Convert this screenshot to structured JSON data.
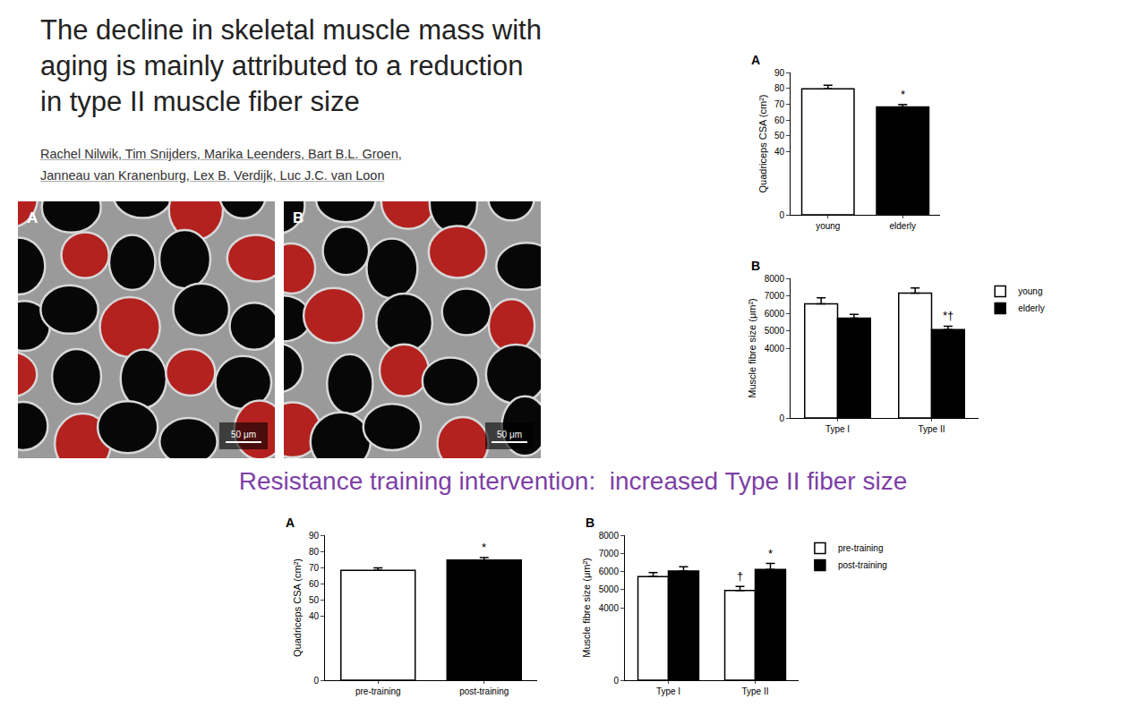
{
  "header": {
    "title": "The decline in skeletal muscle mass with aging is mainly attributed to a reduction in type II muscle fiber size",
    "authors": "Rachel Nilwik, Tim Snijders, Marika Leenders, Bart B.L. Groen, Janneau van Kranenburg, Lex B. Verdijk, Luc J.C. van Loon"
  },
  "images": [
    {
      "label": "A",
      "scale_bar": "50 μm"
    },
    {
      "label": "B",
      "scale_bar": "50 μm"
    }
  ],
  "caption": "Resistance training intervention:  increased Type II fiber size",
  "chart_data": [
    {
      "type": "bar",
      "panel": "A",
      "categories": [
        "young",
        "elderly"
      ],
      "values": [
        79.7,
        68.2
      ],
      "error": [
        2.3,
        1.5
      ],
      "colors": [
        "#ffffff",
        "#000000"
      ],
      "ylabel": "Quadriceps CSA (cm²)",
      "ylim": [
        0,
        90
      ],
      "yticks": [
        0,
        40,
        50,
        60,
        70,
        80,
        90
      ],
      "grid": false,
      "annotations": [
        {
          "category": "elderly",
          "text": "*"
        }
      ]
    },
    {
      "type": "bar",
      "panel": "B",
      "categories": [
        "Type I",
        "Type II"
      ],
      "series": [
        {
          "name": "young",
          "color": "#ffffff",
          "values": [
            6540,
            7150
          ],
          "error": [
            350,
            300
          ]
        },
        {
          "name": "elderly",
          "color": "#000000",
          "values": [
            5720,
            5060
          ],
          "error": [
            220,
            200
          ]
        }
      ],
      "ylabel": "Muscle fibre size (μm²)",
      "ylim": [
        0,
        8000
      ],
      "yticks": [
        0,
        4000,
        5000,
        6000,
        7000,
        8000
      ],
      "grid": false,
      "legend": "right",
      "annotations": [
        {
          "category": "Type II",
          "series": "elderly",
          "text": "*†"
        }
      ]
    },
    {
      "type": "bar",
      "panel": "A",
      "categories": [
        "pre-training",
        "post-training"
      ],
      "values": [
        68.2,
        74.6
      ],
      "error": [
        1.5,
        1.5
      ],
      "colors": [
        "#ffffff",
        "#000000"
      ],
      "ylabel": "Quadriceps CSA (cm²)",
      "ylim": [
        0,
        90
      ],
      "yticks": [
        0,
        40,
        50,
        60,
        70,
        80,
        90
      ],
      "grid": false,
      "annotations": [
        {
          "category": "post-training",
          "text": "*"
        }
      ]
    },
    {
      "type": "bar",
      "panel": "B",
      "categories": [
        "Type I",
        "Type II"
      ],
      "series": [
        {
          "name": "pre-training",
          "color": "#ffffff",
          "values": [
            5720,
            4950
          ],
          "error": [
            220,
            220
          ]
        },
        {
          "name": "post-training",
          "color": "#000000",
          "values": [
            6030,
            6110
          ],
          "error": [
            230,
            330
          ]
        }
      ],
      "ylabel": "Muscle fibre size (μm²)",
      "ylim": [
        0,
        8000
      ],
      "yticks": [
        0,
        4000,
        5000,
        6000,
        7000,
        8000
      ],
      "grid": false,
      "legend": "right",
      "annotations": [
        {
          "category": "Type II",
          "series": "pre-training",
          "text": "†"
        },
        {
          "category": "Type II",
          "series": "post-training",
          "text": "*"
        }
      ]
    }
  ]
}
